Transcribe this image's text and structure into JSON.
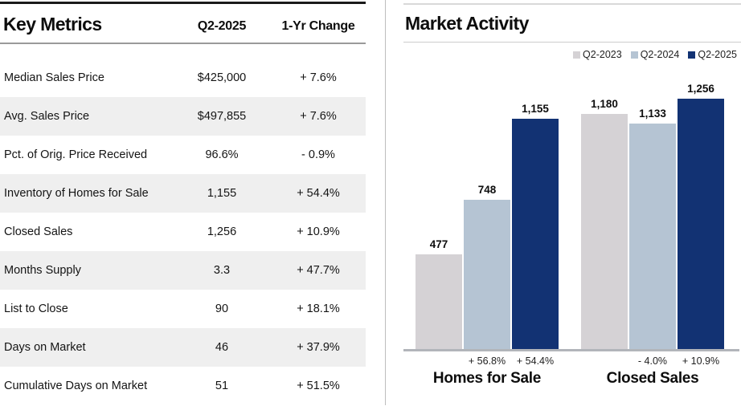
{
  "key_metrics": {
    "title": "Key Metrics",
    "columns": [
      "Q2-2025",
      "1-Yr Change"
    ],
    "rows": [
      {
        "label": "Median Sales Price",
        "value": "$425,000",
        "change": "+ 7.6%"
      },
      {
        "label": "Avg. Sales Price",
        "value": "$497,855",
        "change": "+ 7.6%"
      },
      {
        "label": "Pct. of Orig. Price Received",
        "value": "96.6%",
        "change": "- 0.9%"
      },
      {
        "label": "Inventory of Homes for Sale",
        "value": "1,155",
        "change": "+ 54.4%"
      },
      {
        "label": "Closed Sales",
        "value": "1,256",
        "change": "+ 10.9%"
      },
      {
        "label": "Months Supply",
        "value": "3.3",
        "change": "+ 47.7%"
      },
      {
        "label": "List to Close",
        "value": "90",
        "change": "+ 18.1%"
      },
      {
        "label": "Days on Market",
        "value": "46",
        "change": "+ 37.9%"
      },
      {
        "label": "Cumulative Days on Market",
        "value": "51",
        "change": "+ 51.5%"
      }
    ]
  },
  "chart_data": {
    "type": "bar",
    "title": "Market Activity",
    "categories": [
      "Homes for Sale",
      "Closed Sales"
    ],
    "series": [
      {
        "name": "Q2-2023",
        "color": "#d5d2d5",
        "values": [
          477,
          1180
        ]
      },
      {
        "name": "Q2-2024",
        "color": "#b5c4d3",
        "values": [
          748,
          1133
        ]
      },
      {
        "name": "Q2-2025",
        "color": "#123273",
        "values": [
          1155,
          1256
        ]
      }
    ],
    "bar_labels": [
      [
        "477",
        "748",
        "1,155"
      ],
      [
        "1,180",
        "1,133",
        "1,256"
      ]
    ],
    "change_labels": [
      [
        "",
        "+ 56.8%",
        "+ 54.4%"
      ],
      [
        "",
        "- 4.0%",
        "+ 10.9%"
      ]
    ],
    "ylim": [
      0,
      1256
    ],
    "grid": false,
    "legend_position": "top-right"
  },
  "colors": {
    "bar_2023": "#d5d2d5",
    "bar_2024": "#b5c4d3",
    "bar_2025": "#123273",
    "row_stripe": "#efefef",
    "axis": "#b2b5ba",
    "divider": "#bdbdbd"
  }
}
